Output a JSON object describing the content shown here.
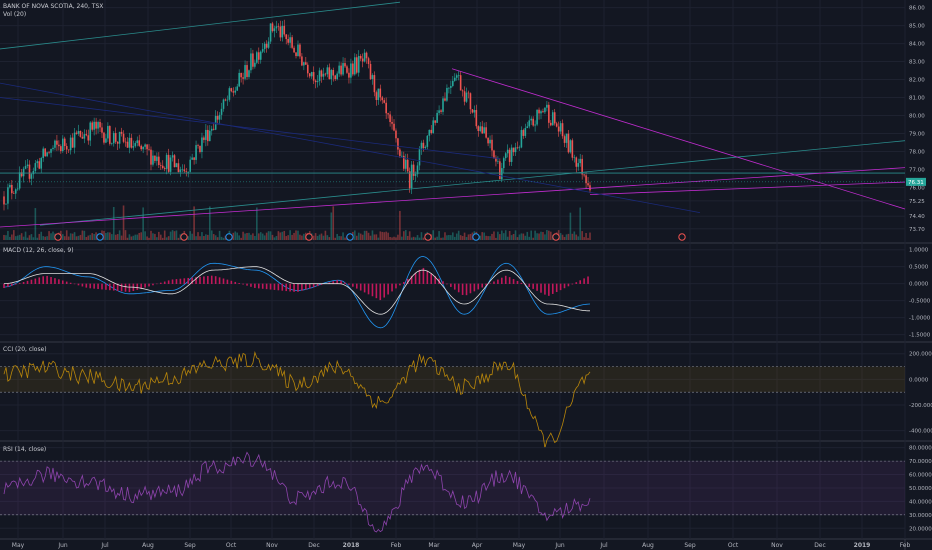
{
  "header": {
    "symbol_line": "BANK OF NOVA SCOTIA, 240, TSX",
    "volume_label": "Vol (20)"
  },
  "price_pane": {
    "tick_labels": [
      "86.00",
      "85.00",
      "84.00",
      "83.00",
      "82.00",
      "81.00",
      "80.00",
      "79.00",
      "78.00",
      "77.00",
      "76.00",
      "75.25",
      "74.40",
      "73.70"
    ],
    "last_price_label": "76.31",
    "last_price": 76.31
  },
  "macd_pane": {
    "label": "MACD (12, 26, close, 9)",
    "tick_labels": [
      "1.0000",
      "0.5000",
      "0.0000",
      "-0.5000",
      "-1.0000",
      "-1.5000"
    ]
  },
  "cci_pane": {
    "label": "CCI (20, close)",
    "tick_labels": [
      "200.0000",
      "0.0000",
      "-200.0000",
      "-400.0000"
    ]
  },
  "rsi_pane": {
    "label": "RSI (14, close)",
    "tick_labels": [
      "80.0000",
      "70.0000",
      "60.0000",
      "50.0000",
      "40.0000",
      "30.0000",
      "20.0000"
    ]
  },
  "time_axis": {
    "labels": [
      "May",
      "Jun",
      "Jul",
      "Aug",
      "Sep",
      "Oct",
      "Nov",
      "Dec",
      "2018",
      "Feb",
      "Mar",
      "Apr",
      "May",
      "Jun",
      "Jul",
      "Aug",
      "Sep",
      "Oct",
      "Nov",
      "Dec",
      "2019",
      "Feb"
    ]
  },
  "colors": {
    "background": "#131722",
    "up": "#26a69a",
    "down": "#ef5350",
    "macd": "#2196f3",
    "signal": "#e0e0e0",
    "cci": "#b8860b",
    "rsi": "#8e44ad",
    "trendline_magenta": "#c02ccf",
    "trendline_teal": "#2a8c8c",
    "trendline_navy": "#1b2a7a"
  },
  "chart_data": [
    {
      "type": "candlestick",
      "title": "BANK OF NOVA SCOTIA, 240, TSX",
      "x": [
        "May 2017",
        "Jun 2017",
        "Jul 2017",
        "Aug 2017",
        "Sep 2017",
        "Oct 2017",
        "Nov 2017",
        "Dec 2017",
        "Jan 2018",
        "Feb 2018",
        "Mar 2018",
        "Apr 2018",
        "May 2018",
        "Jun 2018"
      ],
      "close": [
        75.5,
        78.0,
        79.3,
        78.1,
        77.0,
        81.0,
        85.0,
        82.0,
        83.0,
        76.5,
        82.5,
        77.0,
        80.5,
        76.3
      ],
      "ylim": [
        73.3,
        86.2
      ],
      "grid": true
    },
    {
      "type": "line",
      "title": "MACD (12, 26, close, 9)",
      "ylim": [
        -1.6,
        1.05
      ],
      "series": [
        {
          "name": "MACD",
          "values": [
            -0.1,
            0.5,
            0.2,
            -0.3,
            -0.2,
            0.6,
            0.4,
            -0.2,
            0.1,
            -1.3,
            0.8,
            -0.9,
            0.6,
            -0.9,
            -0.6
          ]
        },
        {
          "name": "Signal",
          "values": [
            0.0,
            0.3,
            0.3,
            -0.1,
            -0.3,
            0.4,
            0.5,
            0.0,
            0.0,
            -0.9,
            0.4,
            -0.6,
            0.4,
            -0.6,
            -0.8
          ]
        }
      ]
    },
    {
      "type": "line",
      "title": "CCI (20, close)",
      "ylim": [
        -450,
        260
      ],
      "bands": [
        100,
        -100
      ],
      "series": [
        {
          "name": "CCI",
          "values": [
            40,
            90,
            20,
            -60,
            10,
            120,
            150,
            -30,
            90,
            -180,
            140,
            -60,
            110,
            -480,
            20
          ]
        }
      ]
    },
    {
      "type": "line",
      "title": "RSI (14, close)",
      "ylim": [
        15,
        82
      ],
      "bands": [
        70,
        30
      ],
      "series": [
        {
          "name": "RSI",
          "values": [
            48,
            60,
            55,
            45,
            47,
            65,
            72,
            42,
            55,
            22,
            66,
            40,
            60,
            30,
            40
          ]
        }
      ]
    }
  ]
}
